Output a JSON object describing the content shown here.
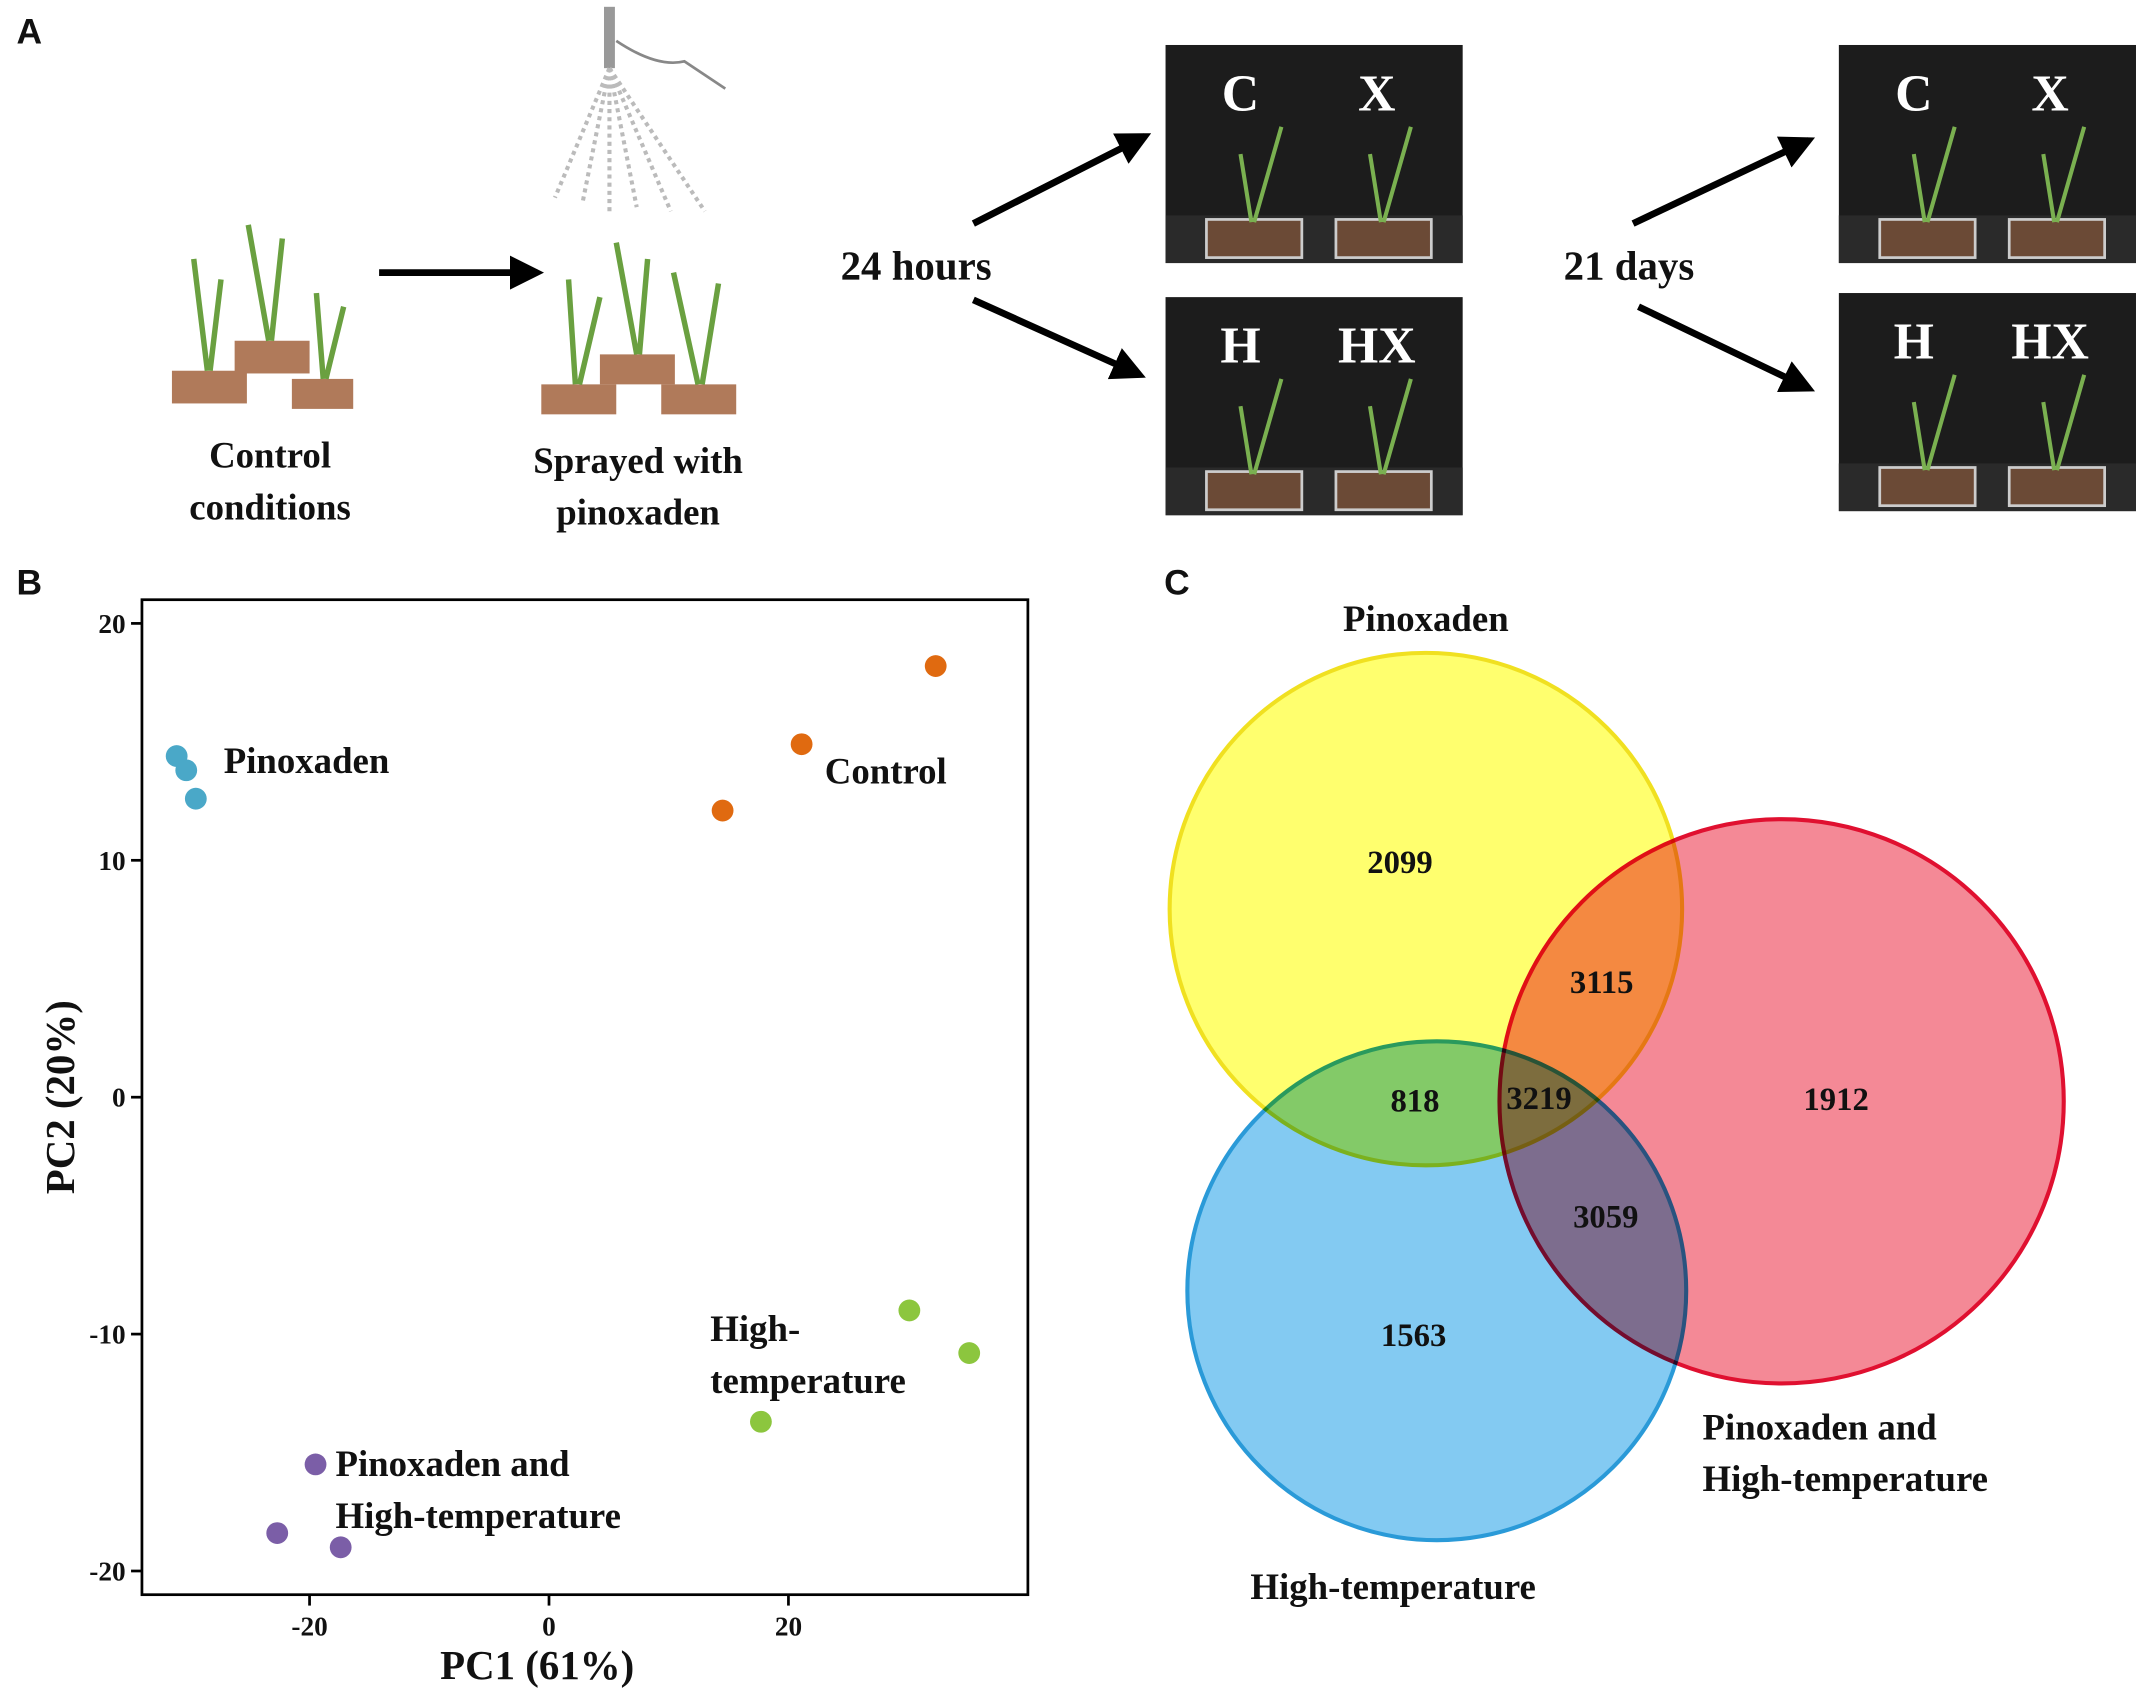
{
  "panel_labels": [
    "A",
    "B",
    "C"
  ],
  "panel_a": {
    "stage_1": [
      "Control",
      "conditions"
    ],
    "stage_2": [
      "Sprayed with",
      "pinoxaden"
    ],
    "time_1": "24 hours",
    "time_2": "21 days",
    "photos": [
      [
        "C",
        "X"
      ],
      [
        "H",
        "HX"
      ],
      [
        "C",
        "X"
      ],
      [
        "H",
        "HX"
      ]
    ]
  },
  "chart_data": {
    "type": "scatter",
    "x_label": "PC1 (61%)",
    "y_label": "PC2 (20%)",
    "xlim": [
      -34,
      40
    ],
    "ylim": [
      -21,
      21
    ],
    "xticks": [
      -20,
      0,
      20
    ],
    "yticks": [
      -20,
      -10,
      0,
      10,
      20
    ],
    "series": [
      {
        "label_lines": [
          "Pinoxaden"
        ],
        "color": "#4aa8c8",
        "x": [
          -31.1,
          -30.3,
          -29.5
        ],
        "y": [
          14.4,
          13.8,
          12.6
        ]
      },
      {
        "label_lines": [
          "Control"
        ],
        "color": "#e06a10",
        "x": [
          32.3,
          21.1,
          14.5
        ],
        "y": [
          18.2,
          14.9,
          12.1
        ]
      },
      {
        "label_lines": [
          "High-",
          "temperature"
        ],
        "color": "#8cc63e",
        "x": [
          30.1,
          35.1,
          17.7
        ],
        "y": [
          -9.0,
          -10.8,
          -13.7
        ]
      },
      {
        "label_lines": [
          "Pinoxaden and",
          "High-temperature"
        ],
        "color": "#7b5ea7",
        "x": [
          -19.5,
          -22.7,
          -17.4
        ],
        "y": [
          -15.5,
          -18.4,
          -19.0
        ]
      }
    ]
  },
  "venn": {
    "sets": [
      {
        "label_lines": [
          "Pinoxaden"
        ]
      },
      {
        "label_lines": [
          "Pinoxaden and",
          "High-temperature"
        ]
      },
      {
        "label_lines": [
          "High-temperature"
        ]
      }
    ],
    "regions": [
      2099,
      3115,
      1912,
      818,
      3219,
      3059,
      1563
    ]
  }
}
